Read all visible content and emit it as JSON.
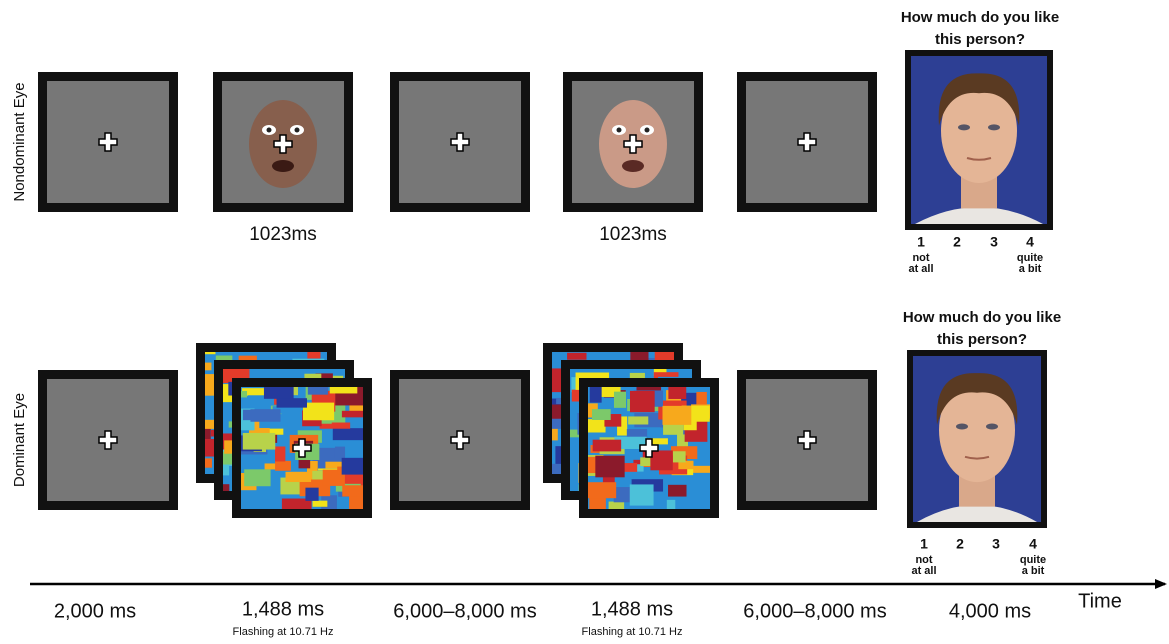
{
  "rows": [
    {
      "label": "Nondominant Eye",
      "stimulus_labels": [
        "1023ms",
        "1023ms"
      ],
      "question": [
        "How much do you like",
        "this person?"
      ],
      "scale": {
        "points": [
          "1",
          "2",
          "3",
          "4"
        ],
        "low": [
          "not",
          "at all"
        ],
        "high": [
          "quite",
          "a bit"
        ]
      }
    },
    {
      "label": "Dominant Eye",
      "question": [
        "How much do you like",
        "this person?"
      ],
      "scale": {
        "points": [
          "1",
          "2",
          "3",
          "4"
        ],
        "low": [
          "not",
          "at all"
        ],
        "high": [
          "quite",
          "a bit"
        ]
      }
    }
  ],
  "timeline": {
    "label": "Time",
    "steps": [
      {
        "duration": "2,000 ms"
      },
      {
        "duration": "1,488 ms",
        "note": "Flashing at 10.71 Hz"
      },
      {
        "duration": "6,000–8,000 ms"
      },
      {
        "duration": "1,488 ms",
        "note": "Flashing at 10.71 Hz"
      },
      {
        "duration": "6,000–8,000 ms"
      },
      {
        "duration": "4,000 ms"
      }
    ]
  }
}
